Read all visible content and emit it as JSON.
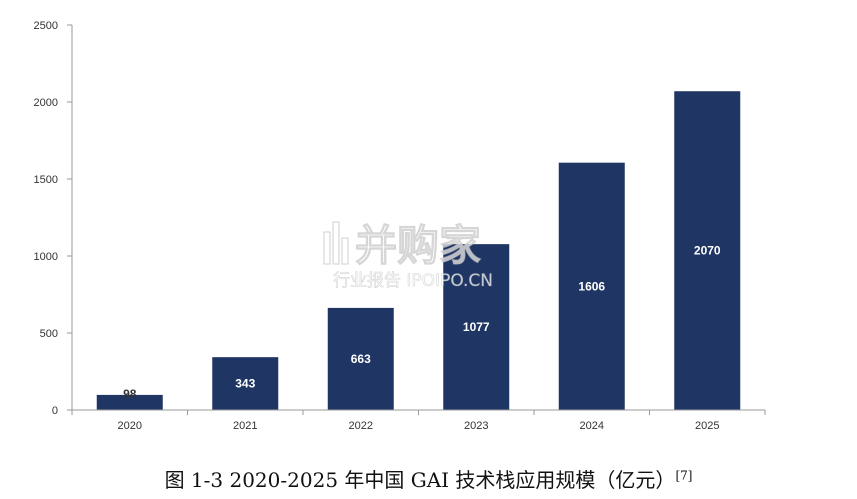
{
  "chart_data": {
    "type": "bar",
    "categories": [
      "2020",
      "2021",
      "2022",
      "2023",
      "2024",
      "2025"
    ],
    "values": [
      98,
      343,
      663,
      1077,
      1606,
      2070
    ],
    "data_labels": [
      "98",
      "343",
      "663",
      "1077",
      "1606",
      "2070"
    ],
    "ylim": [
      0,
      2500
    ],
    "yticks": [
      0,
      500,
      1000,
      1500,
      2000,
      2500
    ],
    "ytick_labels": [
      "0",
      "500",
      "1000",
      "1500",
      "2000",
      "2500"
    ],
    "grid": false,
    "legend": "none",
    "bar_color": "#1f3564",
    "label_color": "#ffffff"
  },
  "watermark": {
    "main": "并购家",
    "sub": "行业报告 IPOIPO.CN"
  },
  "caption": {
    "text": "图 1-3 2020-2025 年中国 GAI 技术栈应用规模（亿元）",
    "ref": "[7]"
  }
}
